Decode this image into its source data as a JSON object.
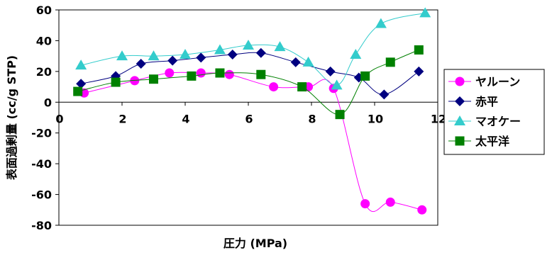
{
  "chart_data": {
    "type": "line",
    "xlabel": "圧力 (MPa)",
    "ylabel": "表面過剰量 (cc/g STP)",
    "xlim": [
      0,
      12
    ],
    "ylim": [
      -80,
      60
    ],
    "xticks": [
      0,
      2,
      4,
      6,
      8,
      10,
      12
    ],
    "yticks": [
      -80,
      -60,
      -40,
      -20,
      0,
      20,
      40,
      60
    ],
    "grid": false,
    "legend_position": "right",
    "series": [
      {
        "name": "ヤルーン",
        "color": "#ff00ff",
        "marker": "circle",
        "x": [
          0.8,
          2.4,
          3.5,
          4.5,
          5.4,
          6.8,
          7.9,
          8.7,
          9.7,
          10.5,
          11.5
        ],
        "y": [
          6,
          14,
          19,
          19,
          18,
          10,
          10,
          9,
          -66,
          -65,
          -70
        ]
      },
      {
        "name": "赤平",
        "color": "#000080",
        "marker": "diamond",
        "x": [
          0.7,
          1.8,
          2.6,
          3.6,
          4.5,
          5.5,
          6.4,
          7.5,
          8.6,
          9.5,
          10.3,
          11.4
        ],
        "y": [
          12,
          17,
          25,
          27,
          29,
          31,
          32,
          26,
          20,
          16,
          5,
          20
        ]
      },
      {
        "name": "マオケー",
        "color": "#33cccc",
        "marker": "triangle",
        "x": [
          0.7,
          2.0,
          3.0,
          4.0,
          5.1,
          6.0,
          7.0,
          7.9,
          8.8,
          9.4,
          10.2,
          11.6
        ],
        "y": [
          24,
          30,
          30,
          31,
          34,
          37,
          36,
          26,
          11,
          31,
          51,
          58
        ]
      },
      {
        "name": "太平洋",
        "color": "#008000",
        "marker": "square",
        "x": [
          0.6,
          1.8,
          3.0,
          4.2,
          5.1,
          6.4,
          7.7,
          8.9,
          9.7,
          10.5,
          11.4
        ],
        "y": [
          7,
          13,
          15,
          17,
          19,
          18,
          10,
          -8,
          17,
          26,
          34
        ]
      }
    ]
  }
}
